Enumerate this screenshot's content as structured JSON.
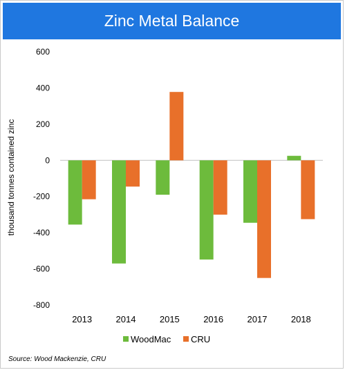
{
  "chart_data": {
    "type": "bar",
    "title": "Zinc Metal Balance",
    "ylabel": "thousand tonnes contained zinc",
    "xlabel": "",
    "categories": [
      "2013",
      "2014",
      "2015",
      "2016",
      "2017",
      "2018"
    ],
    "series": [
      {
        "name": "WoodMac",
        "color": "#6dbb3c",
        "values": [
          -355,
          -570,
          -190,
          -548,
          -345,
          25
        ]
      },
      {
        "name": "CRU",
        "color": "#e8702a",
        "values": [
          -215,
          -145,
          378,
          -300,
          -650,
          -325
        ]
      }
    ],
    "ylim": [
      -800,
      600
    ],
    "yticks": [
      "600",
      "400",
      "200",
      "0",
      "-200",
      "-400",
      "-600",
      "-800"
    ],
    "legend_position": "bottom",
    "grid": false
  },
  "source": "Source: Wood Mackenzie, CRU"
}
